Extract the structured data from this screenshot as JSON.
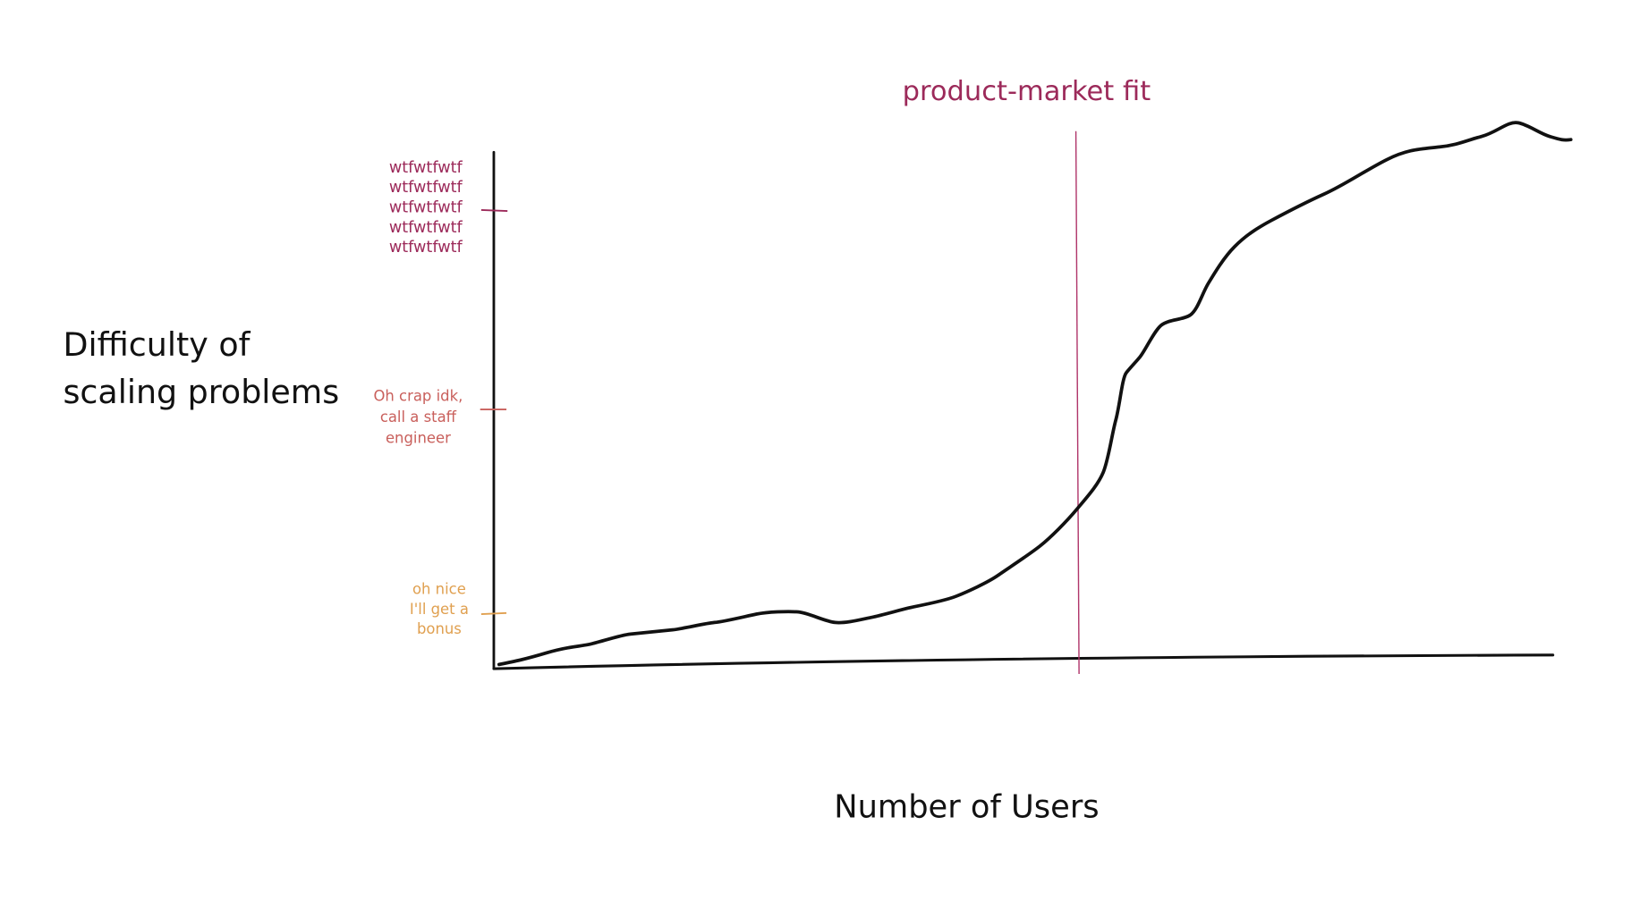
{
  "annotation": {
    "label": "product-market fit"
  },
  "y_axis": {
    "label_lines": [
      "Difficulty of",
      "scaling problems"
    ]
  },
  "x_axis": {
    "label": "Number of Users"
  },
  "levels": [
    {
      "lines": [
        "wtfwtfwtf",
        "wtfwtfwtf",
        "wtfwtfwtf",
        "wtfwtfwtf",
        "wtfwtfwtf"
      ]
    },
    {
      "lines": [
        "Oh crap idk,",
        "call a staff",
        "engineer"
      ]
    },
    {
      "lines": [
        "oh nice",
        "I'll get a",
        "bonus"
      ]
    }
  ]
}
